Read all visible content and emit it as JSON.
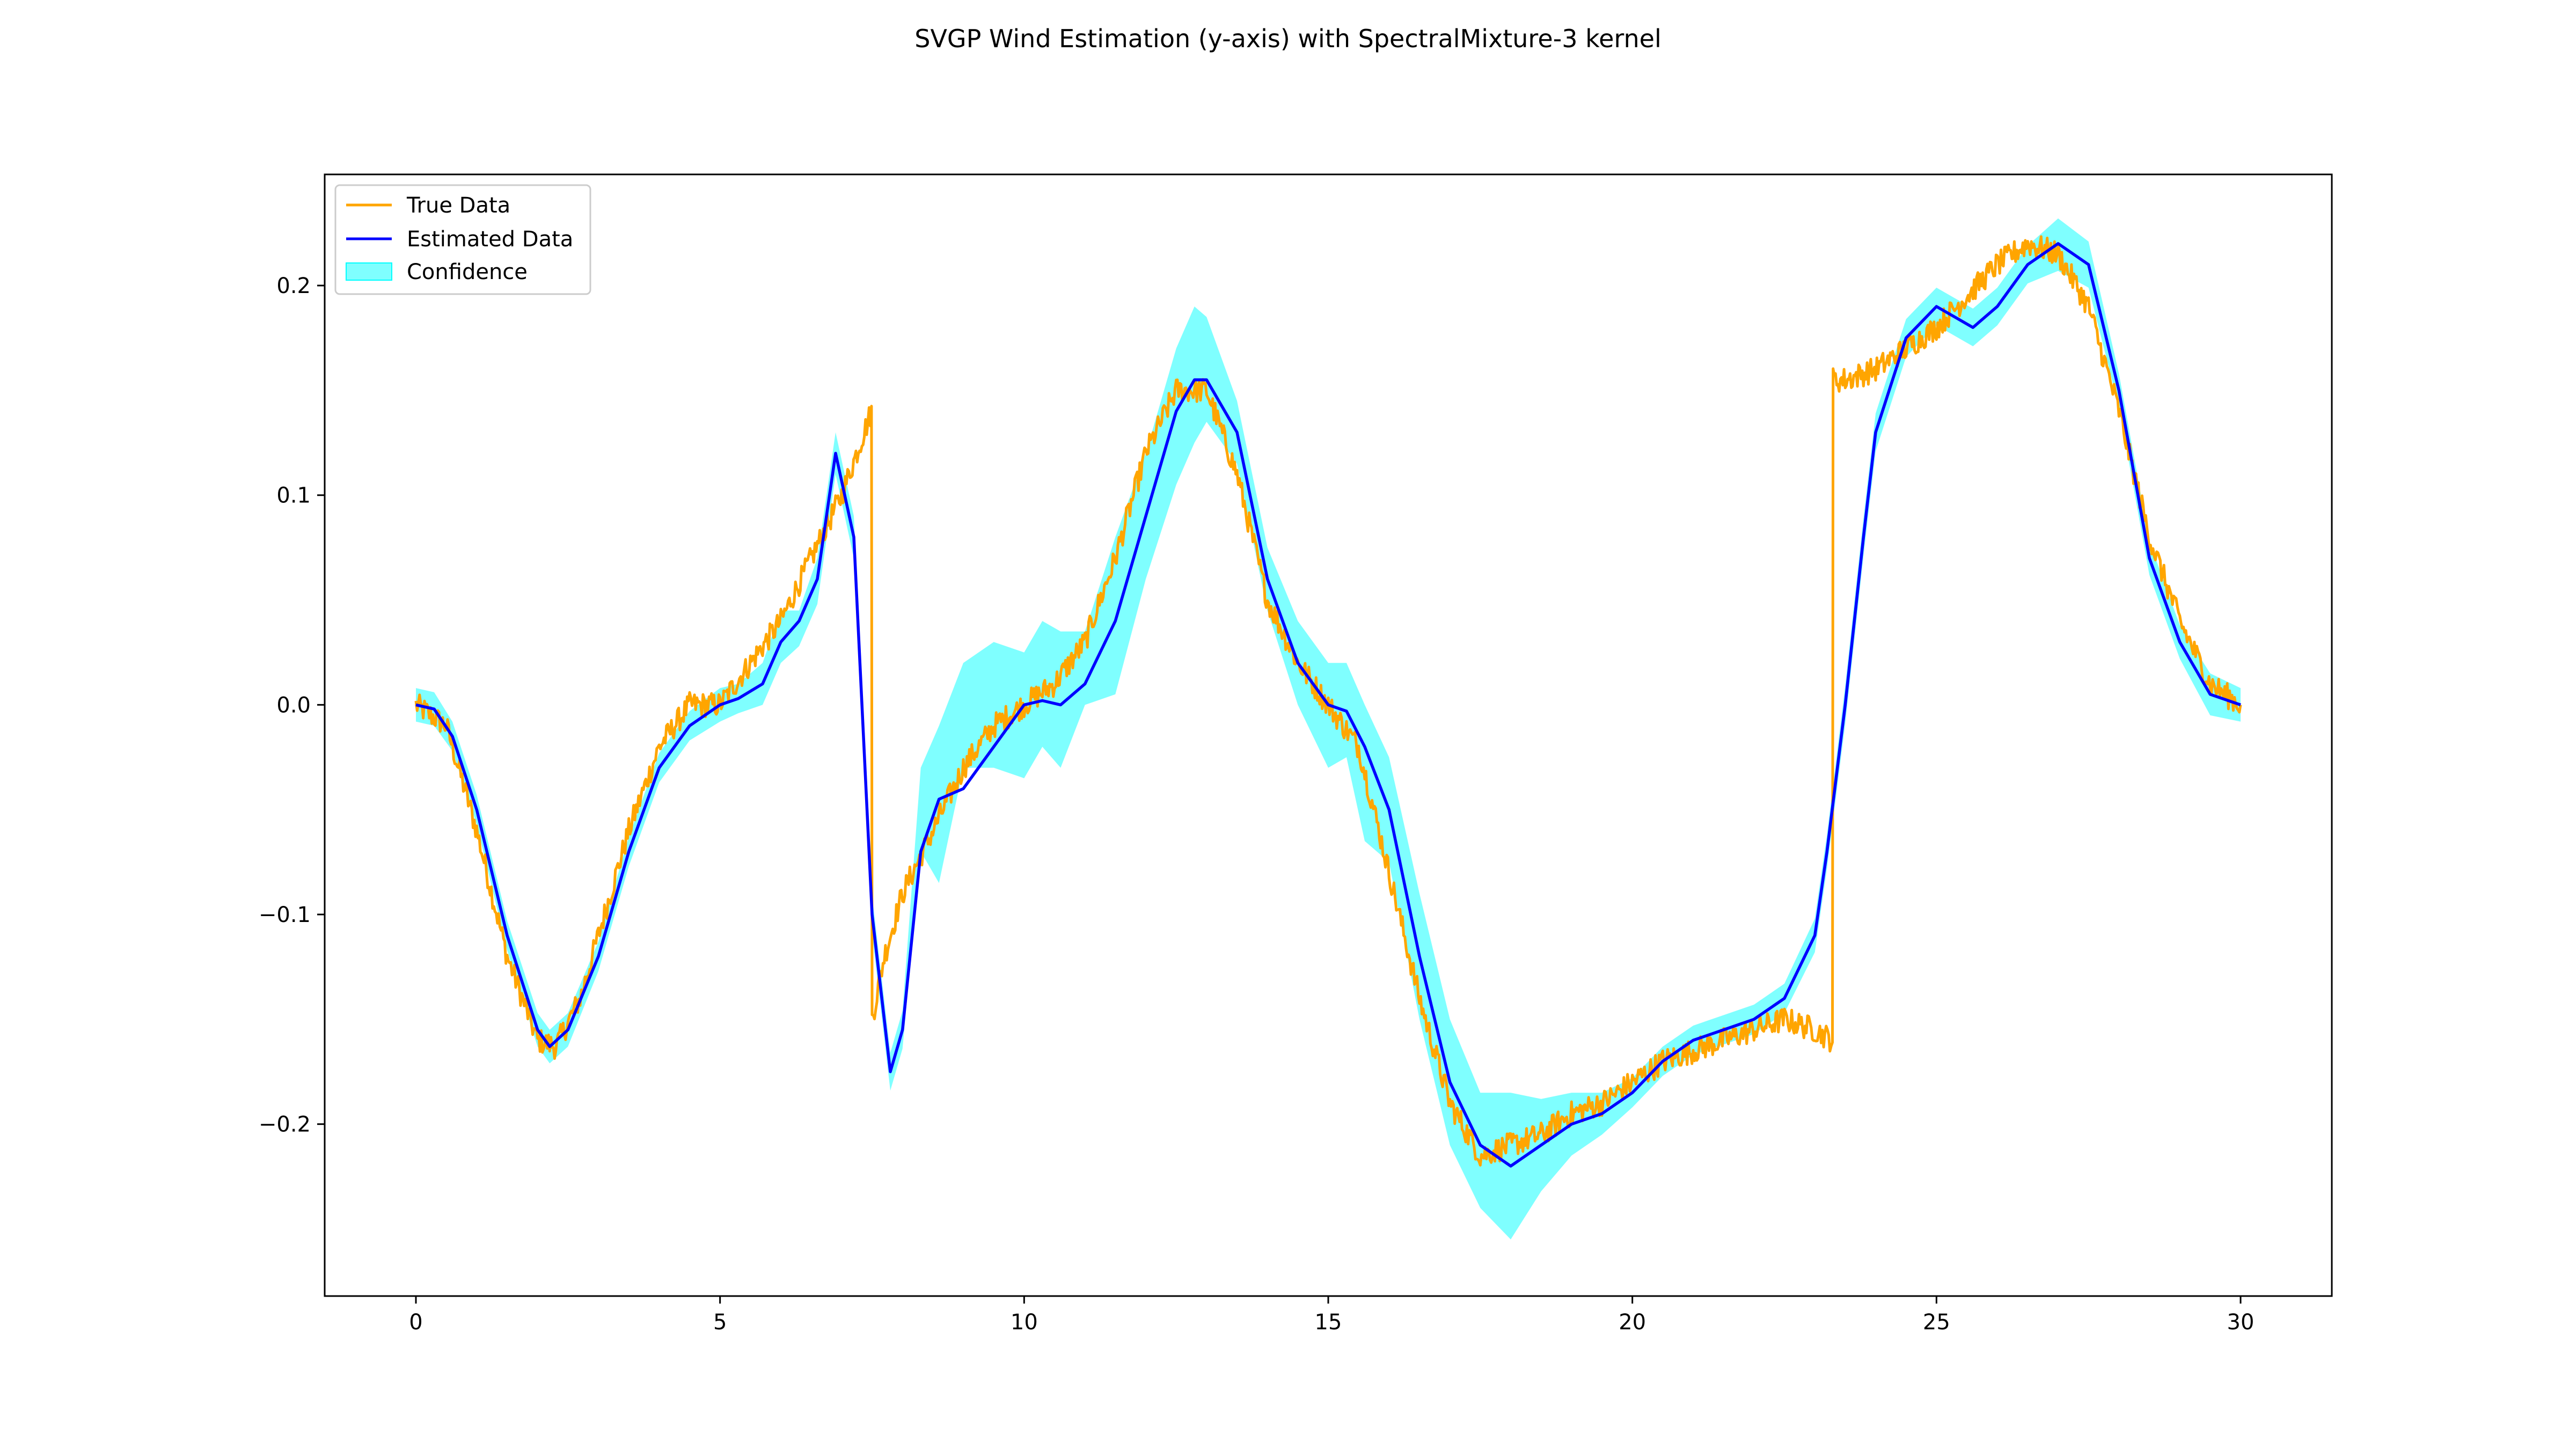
{
  "chart_data": {
    "type": "line",
    "title": "SVGP Wind Estimation (y-axis) with SpectralMixture-3 kernel",
    "xlabel": "",
    "ylabel": "",
    "xlim": [
      -1.5,
      31.5
    ],
    "ylim": [
      -0.282,
      0.253
    ],
    "x_ticks": [
      0,
      5,
      10,
      15,
      20,
      25,
      30
    ],
    "x_tick_labels": [
      "0",
      "5",
      "10",
      "15",
      "20",
      "25",
      "30"
    ],
    "y_ticks": [
      -0.2,
      -0.1,
      0.0,
      0.1,
      0.2
    ],
    "y_tick_labels": [
      "−0.2",
      "−0.1",
      "0.0",
      "0.1",
      "0.2"
    ],
    "grid": false,
    "legend": {
      "placement": "top-left",
      "entries": [
        "True Data",
        "Estimated Data",
        "Confidence"
      ]
    },
    "colors": {
      "true": "#FFA500",
      "estimated": "#0000FF",
      "confidence": "#00FFFF"
    },
    "series": [
      {
        "name": "True Data",
        "noise": 0.006,
        "x": [
          0,
          0.5,
          1.0,
          1.5,
          2.0,
          2.3,
          2.7,
          3.0,
          3.5,
          4.0,
          4.5,
          5.0,
          5.5,
          6.0,
          6.5,
          7.0,
          7.49,
          7.5,
          7.7,
          8.0,
          8.5,
          9.0,
          9.5,
          10.0,
          10.5,
          11.0,
          11.5,
          12.0,
          12.5,
          13.0,
          13.5,
          14.0,
          14.5,
          15.0,
          15.5,
          16.0,
          16.5,
          17.0,
          17.5,
          18.0,
          18.5,
          19.0,
          19.5,
          20.0,
          20.5,
          21.0,
          21.5,
          22.0,
          22.5,
          23.0,
          23.29,
          23.3,
          23.5,
          24.0,
          24.5,
          25.0,
          25.5,
          26.0,
          26.5,
          27.0,
          27.5,
          28.0,
          28.5,
          29.0,
          29.5,
          30.0
        ],
        "y": [
          0.0,
          -0.01,
          -0.06,
          -0.12,
          -0.16,
          -0.163,
          -0.14,
          -0.11,
          -0.06,
          -0.02,
          0.0,
          0.0,
          0.02,
          0.04,
          0.07,
          0.1,
          0.14,
          -0.15,
          -0.12,
          -0.09,
          -0.06,
          -0.03,
          -0.01,
          0.0,
          0.01,
          0.03,
          0.07,
          0.12,
          0.15,
          0.15,
          0.11,
          0.05,
          0.02,
          0.0,
          -0.02,
          -0.08,
          -0.14,
          -0.19,
          -0.215,
          -0.21,
          -0.205,
          -0.195,
          -0.19,
          -0.18,
          -0.17,
          -0.165,
          -0.16,
          -0.155,
          -0.15,
          -0.155,
          -0.16,
          0.155,
          0.155,
          0.16,
          0.17,
          0.18,
          0.195,
          0.21,
          0.22,
          0.215,
          0.19,
          0.14,
          0.08,
          0.04,
          0.01,
          0.0
        ]
      },
      {
        "name": "Estimated Data",
        "x": [
          0,
          0.3,
          0.6,
          1.0,
          1.5,
          2.0,
          2.2,
          2.5,
          3.0,
          3.5,
          4.0,
          4.5,
          5.0,
          5.3,
          5.7,
          6.0,
          6.3,
          6.6,
          6.9,
          7.2,
          7.5,
          7.8,
          8.0,
          8.3,
          8.6,
          9.0,
          9.5,
          10.0,
          10.3,
          10.6,
          11.0,
          11.5,
          12.0,
          12.5,
          12.8,
          13.0,
          13.5,
          14.0,
          14.5,
          15.0,
          15.3,
          15.6,
          16.0,
          16.5,
          17.0,
          17.5,
          18.0,
          18.5,
          19.0,
          19.5,
          20.0,
          20.5,
          21.0,
          21.5,
          22.0,
          22.5,
          23.0,
          23.2,
          23.5,
          23.8,
          24.0,
          24.5,
          25.0,
          25.3,
          25.6,
          26.0,
          26.5,
          27.0,
          27.5,
          28.0,
          28.5,
          29.0,
          29.5,
          30.0
        ],
        "y": [
          0.0,
          -0.002,
          -0.015,
          -0.05,
          -0.11,
          -0.155,
          -0.163,
          -0.155,
          -0.12,
          -0.07,
          -0.03,
          -0.01,
          0.0,
          0.003,
          0.01,
          0.03,
          0.04,
          0.06,
          0.12,
          0.08,
          -0.1,
          -0.175,
          -0.155,
          -0.07,
          -0.045,
          -0.04,
          -0.02,
          0.0,
          0.002,
          0.0,
          0.01,
          0.04,
          0.09,
          0.14,
          0.155,
          0.155,
          0.13,
          0.06,
          0.02,
          0.0,
          -0.003,
          -0.02,
          -0.05,
          -0.12,
          -0.18,
          -0.21,
          -0.22,
          -0.21,
          -0.2,
          -0.195,
          -0.185,
          -0.17,
          -0.16,
          -0.155,
          -0.15,
          -0.14,
          -0.11,
          -0.07,
          0.0,
          0.08,
          0.13,
          0.175,
          0.19,
          0.185,
          0.18,
          0.19,
          0.21,
          0.22,
          0.21,
          0.15,
          0.07,
          0.03,
          0.005,
          0.0
        ]
      },
      {
        "name": "Confidence",
        "x": [
          0,
          0.3,
          0.6,
          1.0,
          1.5,
          2.0,
          2.2,
          2.5,
          3.0,
          3.5,
          4.0,
          4.5,
          5.0,
          5.3,
          5.7,
          6.0,
          6.3,
          6.6,
          6.9,
          7.2,
          7.5,
          7.8,
          8.0,
          8.3,
          8.6,
          9.0,
          9.5,
          10.0,
          10.3,
          10.6,
          11.0,
          11.5,
          12.0,
          12.5,
          12.8,
          13.0,
          13.5,
          14.0,
          14.5,
          15.0,
          15.3,
          15.6,
          16.0,
          16.5,
          17.0,
          17.5,
          18.0,
          18.5,
          19.0,
          19.5,
          20.0,
          20.5,
          21.0,
          21.5,
          22.0,
          22.5,
          23.0,
          23.2,
          23.5,
          23.8,
          24.0,
          24.5,
          25.0,
          25.3,
          25.6,
          26.0,
          26.5,
          27.0,
          27.5,
          28.0,
          28.5,
          29.0,
          29.5,
          30.0
        ],
        "lower": [
          -0.008,
          -0.01,
          -0.022,
          -0.057,
          -0.117,
          -0.163,
          -0.171,
          -0.163,
          -0.127,
          -0.077,
          -0.037,
          -0.017,
          -0.008,
          -0.004,
          0.0,
          0.02,
          0.028,
          0.048,
          0.11,
          0.07,
          -0.109,
          -0.184,
          -0.164,
          -0.07,
          -0.085,
          -0.03,
          -0.03,
          -0.035,
          -0.02,
          -0.03,
          0.0,
          0.005,
          0.06,
          0.105,
          0.125,
          0.135,
          0.115,
          0.045,
          0.0,
          -0.03,
          -0.025,
          -0.065,
          -0.075,
          -0.15,
          -0.21,
          -0.24,
          -0.255,
          -0.232,
          -0.215,
          -0.205,
          -0.192,
          -0.177,
          -0.167,
          -0.162,
          -0.157,
          -0.147,
          -0.118,
          -0.078,
          -0.009,
          0.071,
          0.121,
          0.166,
          0.181,
          0.176,
          0.171,
          0.181,
          0.201,
          0.207,
          0.199,
          0.142,
          0.062,
          0.022,
          -0.005,
          -0.008
        ],
        "upper": [
          0.008,
          0.006,
          -0.008,
          -0.043,
          -0.103,
          -0.147,
          -0.155,
          -0.147,
          -0.113,
          -0.063,
          -0.023,
          -0.003,
          0.008,
          0.01,
          0.02,
          0.045,
          0.045,
          0.07,
          0.13,
          0.09,
          -0.091,
          -0.166,
          -0.146,
          -0.03,
          -0.01,
          0.02,
          0.03,
          0.025,
          0.04,
          0.035,
          0.035,
          0.08,
          0.12,
          0.17,
          0.19,
          0.185,
          0.145,
          0.075,
          0.04,
          0.02,
          0.02,
          0.0,
          -0.025,
          -0.09,
          -0.15,
          -0.185,
          -0.185,
          -0.188,
          -0.185,
          -0.185,
          -0.178,
          -0.163,
          -0.153,
          -0.148,
          -0.143,
          -0.133,
          -0.102,
          -0.062,
          0.009,
          0.089,
          0.139,
          0.184,
          0.199,
          0.194,
          0.189,
          0.199,
          0.219,
          0.232,
          0.221,
          0.158,
          0.078,
          0.038,
          0.015,
          0.008
        ]
      }
    ]
  }
}
